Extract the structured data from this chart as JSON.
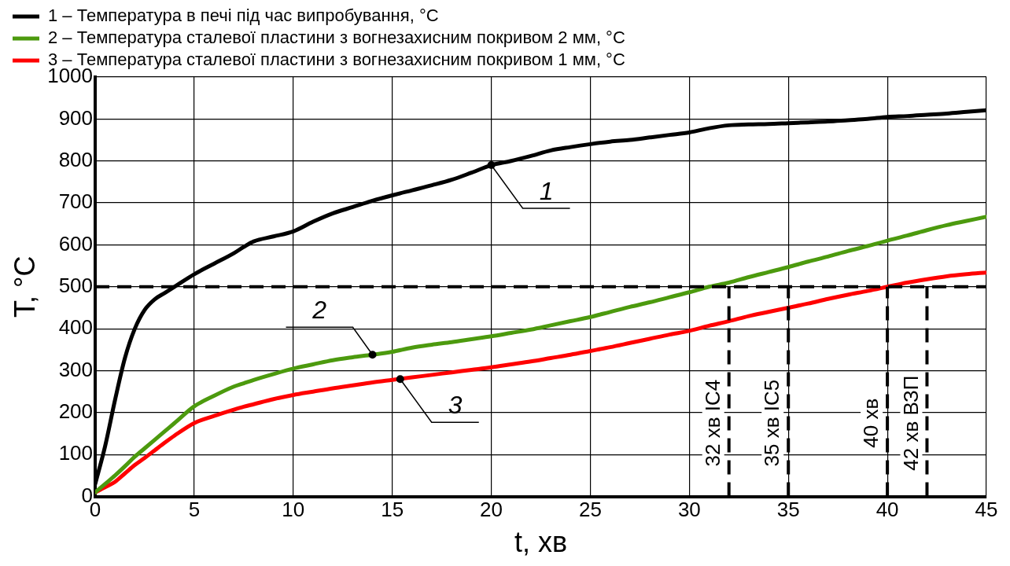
{
  "chart_data": {
    "type": "line",
    "xlabel": "t, хв",
    "ylabel": "T, °C",
    "x": [
      0,
      0.5,
      1,
      1.5,
      2,
      2.5,
      3,
      3.5,
      4,
      5,
      6,
      7,
      7.5,
      8,
      9,
      10,
      11,
      12,
      13,
      14,
      15,
      16,
      17,
      18,
      19,
      20,
      21,
      22,
      23,
      24,
      25,
      26,
      27,
      28,
      29,
      30,
      31,
      32,
      33,
      34,
      35,
      36,
      37,
      38,
      39,
      40,
      41,
      42,
      43,
      44,
      45
    ],
    "series": [
      {
        "name": "1 – Температура в печі під час випробування, °C",
        "color": "#000000",
        "values": [
          30,
          120,
          230,
          330,
          400,
          445,
          470,
          485,
          500,
          530,
          555,
          580,
          595,
          608,
          620,
          632,
          655,
          675,
          690,
          705,
          718,
          730,
          742,
          755,
          772,
          790,
          800,
          812,
          825,
          833,
          840,
          846,
          850,
          856,
          862,
          868,
          878,
          885,
          887,
          888,
          890,
          892,
          894,
          897,
          900,
          905,
          907,
          910,
          913,
          917,
          921
        ]
      },
      {
        "name": "2 – Температура сталевої пластини з вогнезахисним покривом 2 мм, °C",
        "color": "#4c9a0e",
        "values": [
          10,
          30,
          50,
          72,
          95,
          115,
          135,
          155,
          175,
          215,
          240,
          262,
          270,
          278,
          292,
          305,
          315,
          325,
          332,
          338,
          345,
          355,
          362,
          368,
          375,
          382,
          390,
          398,
          408,
          418,
          428,
          440,
          452,
          463,
          475,
          487,
          500,
          510,
          523,
          535,
          547,
          560,
          572,
          585,
          597,
          610,
          622,
          635,
          647,
          657,
          667
        ]
      },
      {
        "name": "3 – Температура сталевої пластини з вогнезахисним покривом 1 мм, °C",
        "color": "#ff0000",
        "values": [
          10,
          22,
          35,
          55,
          75,
          92,
          110,
          128,
          145,
          175,
          192,
          207,
          214,
          220,
          232,
          242,
          250,
          258,
          265,
          272,
          278,
          284,
          290,
          296,
          302,
          308,
          315,
          322,
          330,
          338,
          347,
          356,
          366,
          376,
          386,
          395,
          407,
          418,
          430,
          440,
          450,
          460,
          471,
          481,
          490,
          500,
          510,
          518,
          525,
          530,
          534
        ]
      }
    ],
    "xlim": [
      0,
      45
    ],
    "xticks": [
      0,
      5,
      10,
      15,
      20,
      25,
      30,
      35,
      40,
      45
    ],
    "ylim": [
      0,
      1000
    ],
    "yticks": [
      0,
      100,
      200,
      300,
      400,
      500,
      600,
      700,
      800,
      900,
      1000
    ],
    "grid": true,
    "legend": "top",
    "marker": "none",
    "line_style": "solid",
    "ref_lines": [
      {
        "axis": "y",
        "value": 500,
        "line_style": "dashed"
      },
      {
        "axis": "x",
        "value": 32,
        "label": "32 хв IC4",
        "line_style": "dashed"
      },
      {
        "axis": "x",
        "value": 35,
        "label": "35 хв IC5",
        "line_style": "dashed"
      },
      {
        "axis": "x",
        "value": 40,
        "label": "40 хв",
        "line_style": "dashed"
      },
      {
        "axis": "x",
        "value": 42,
        "label": "42 хв ВЗП",
        "line_style": "dashed"
      }
    ],
    "annotations": [
      {
        "text": "1",
        "x": 20,
        "y": 790
      },
      {
        "text": "2",
        "x": 14,
        "y": 338
      },
      {
        "text": "3",
        "x": 15.4,
        "y": 280
      }
    ]
  }
}
